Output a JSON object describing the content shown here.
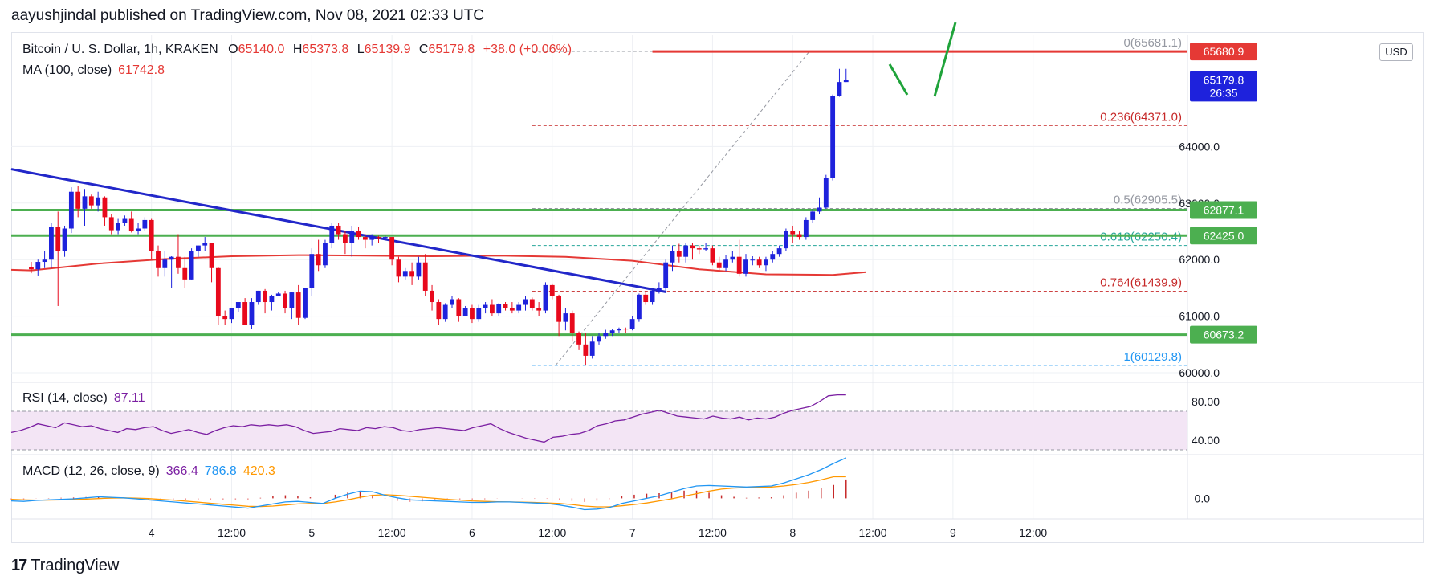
{
  "header": {
    "text": "aayushjindal published on TradingView.com, Nov 08, 2021 02:33 UTC"
  },
  "legend": {
    "title": "Bitcoin / U. S. Dollar, 1h, KRAKEN",
    "open_label": "O",
    "open": "65140.0",
    "high_label": "H",
    "high": "65373.8",
    "low_label": "L",
    "low": "65139.9",
    "close_label": "C",
    "close": "65179.8",
    "change": "+38.0 (+0.06%)",
    "ma_label": "MA (100, close)",
    "ma_value": "61742.8",
    "rsi_label": "RSI (14, close)",
    "rsi_value": "87.11",
    "macd_label": "MACD (12, 26, close, 9)",
    "macd_value1": "366.4",
    "macd_value2": "786.8",
    "macd_value3": "420.3"
  },
  "currency_badge": "USD",
  "logo": {
    "mark": "17",
    "text": "TradingView"
  },
  "colors": {
    "up": "#1e22dc",
    "down": "#e8091c",
    "ma": "#e53935",
    "trendline": "#2227c9",
    "support": "#4caf50",
    "fib_red": "#c62828",
    "fib_green": "#26a69a",
    "fib_blue": "#2196f3",
    "rsi_line": "#7b1fa2",
    "rsi_band": "#f3e5f5",
    "macd_blue": "#2196f3",
    "macd_orange": "#ff9800",
    "hist": "#b71c1c",
    "grid": "#eef0f4",
    "green_draw": "#1fa33a"
  },
  "chart_data": {
    "type": "candlestick",
    "symbol": "Bitcoin / U. S. Dollar",
    "interval": "1h",
    "exchange": "KRAKEN",
    "price_ticks": [
      60000.0,
      61000.0,
      62000.0,
      63000.0,
      64000.0
    ],
    "price_tick_labels": [
      "60000.0",
      "61000.0",
      "62000.0",
      "63000.0",
      "64000.0"
    ],
    "price_range": [
      59830,
      65980
    ],
    "time_ticks": [
      "4",
      "12:00",
      "5",
      "12:00",
      "6",
      "12:00",
      "7",
      "12:00",
      "8",
      "12:00",
      "9",
      "12:00"
    ],
    "time_tick_hours": [
      21,
      33,
      45,
      57,
      69,
      81,
      93,
      105,
      117,
      129,
      141,
      153
    ],
    "time_range_hours": [
      0,
      176
    ],
    "candles": [
      [
        61865,
        61960,
        61760,
        61830
      ],
      [
        61830,
        62000,
        61720,
        61960
      ],
      [
        61960,
        62150,
        61850,
        62000
      ],
      [
        62000,
        62650,
        61850,
        62580
      ],
      [
        62580,
        62850,
        61180,
        62150
      ],
      [
        62150,
        62600,
        62050,
        62550
      ],
      [
        62550,
        63280,
        62470,
        63200
      ],
      [
        63200,
        63300,
        62750,
        62900
      ],
      [
        62900,
        63250,
        62600,
        63120
      ],
      [
        63120,
        63150,
        62900,
        62960
      ],
      [
        62960,
        63200,
        62850,
        63100
      ],
      [
        63100,
        63120,
        62600,
        62750
      ],
      [
        62750,
        62800,
        62450,
        62520
      ],
      [
        62520,
        62720,
        62450,
        62650
      ],
      [
        62650,
        62780,
        62600,
        62720
      ],
      [
        62720,
        62850,
        62480,
        62500
      ],
      [
        62500,
        62650,
        62450,
        62550
      ],
      [
        62550,
        62750,
        62500,
        62700
      ],
      [
        62700,
        62720,
        62000,
        62150
      ],
      [
        62150,
        62250,
        61700,
        61850
      ],
      [
        61850,
        62150,
        61700,
        62000
      ],
      [
        62000,
        62060,
        61500,
        62050
      ],
      [
        62050,
        62450,
        61750,
        61850
      ],
      [
        61850,
        62050,
        61500,
        61650
      ],
      [
        61650,
        62200,
        61650,
        62150
      ],
      [
        62150,
        62250,
        62050,
        62250
      ],
      [
        62250,
        62400,
        62150,
        62300
      ],
      [
        62300,
        62300,
        61600,
        61850
      ],
      [
        61850,
        61860,
        60850,
        61000
      ],
      [
        61000,
        61100,
        60850,
        60950
      ],
      [
        60950,
        61150,
        60880,
        61150
      ],
      [
        61150,
        61250,
        61080,
        61250
      ],
      [
        61250,
        61320,
        60850,
        60850
      ],
      [
        60850,
        61320,
        60780,
        61250
      ],
      [
        61250,
        61450,
        61200,
        61450
      ],
      [
        61450,
        61480,
        61050,
        61250
      ],
      [
        61250,
        61380,
        61100,
        61350
      ],
      [
        61350,
        61420,
        61350,
        61400
      ],
      [
        61400,
        61450,
        61050,
        61150
      ],
      [
        61150,
        61420,
        60950,
        61420
      ],
      [
        61420,
        61550,
        60850,
        60970
      ],
      [
        60970,
        61500,
        60950,
        61500
      ],
      [
        61500,
        62200,
        61350,
        62100
      ],
      [
        62100,
        62350,
        61800,
        61900
      ],
      [
        61900,
        62350,
        61850,
        62300
      ],
      [
        62300,
        62650,
        62200,
        62600
      ],
      [
        62600,
        62650,
        62350,
        62450
      ],
      [
        62450,
        62500,
        62100,
        62300
      ],
      [
        62300,
        62600,
        62050,
        62500
      ],
      [
        62500,
        62580,
        62350,
        62400
      ],
      [
        62400,
        62450,
        62200,
        62350
      ],
      [
        62350,
        62450,
        62250,
        62400
      ],
      [
        62400,
        62420,
        62300,
        62380
      ],
      [
        62380,
        62420,
        62350,
        62400
      ],
      [
        62400,
        62400,
        61900,
        62000
      ],
      [
        62000,
        62050,
        61600,
        61700
      ],
      [
        61700,
        61850,
        61650,
        61800
      ],
      [
        61800,
        61950,
        61550,
        61700
      ],
      [
        61700,
        62050,
        61650,
        61950
      ],
      [
        61950,
        62100,
        61350,
        61450
      ],
      [
        61450,
        61550,
        61100,
        61250
      ],
      [
        61250,
        61300,
        60850,
        60950
      ],
      [
        60950,
        61230,
        60900,
        61200
      ],
      [
        61200,
        61350,
        61150,
        61300
      ],
      [
        61300,
        61320,
        60900,
        61000
      ],
      [
        61000,
        61180,
        61000,
        61150
      ],
      [
        61150,
        61200,
        60880,
        60950
      ],
      [
        60950,
        61200,
        60900,
        61150
      ],
      [
        61150,
        61250,
        61050,
        61200
      ],
      [
        61200,
        61300,
        61000,
        61050
      ],
      [
        61050,
        61230,
        61000,
        61220
      ],
      [
        61220,
        61250,
        61100,
        61150
      ],
      [
        61150,
        61250,
        61050,
        61100
      ],
      [
        61100,
        61250,
        61050,
        61200
      ],
      [
        61200,
        61350,
        61100,
        61300
      ],
      [
        61300,
        61330,
        61100,
        61150
      ],
      [
        61150,
        61250,
        61000,
        61100
      ],
      [
        61100,
        61600,
        61050,
        61550
      ],
      [
        61550,
        61580,
        61300,
        61350
      ],
      [
        61350,
        61380,
        60650,
        60900
      ],
      [
        60900,
        61150,
        60750,
        61050
      ],
      [
        61050,
        61100,
        60550,
        60700
      ],
      [
        60700,
        60730,
        60400,
        60500
      ],
      [
        60500,
        60700,
        60130,
        60300
      ],
      [
        60300,
        60650,
        60250,
        60550
      ],
      [
        60550,
        60700,
        60500,
        60650
      ],
      [
        60650,
        60760,
        60600,
        60700
      ],
      [
        60700,
        60780,
        60650,
        60750
      ],
      [
        60750,
        60800,
        60700,
        60780
      ],
      [
        60780,
        60800,
        60700,
        60770
      ],
      [
        60770,
        61000,
        60750,
        60950
      ],
      [
        60950,
        61400,
        60900,
        61380
      ],
      [
        61380,
        61450,
        61200,
        61250
      ],
      [
        61250,
        61480,
        61200,
        61450
      ],
      [
        61450,
        61600,
        61400,
        61500
      ],
      [
        61500,
        62000,
        61450,
        61950
      ],
      [
        61950,
        62250,
        61800,
        62150
      ],
      [
        62150,
        62280,
        61950,
        62050
      ],
      [
        62050,
        62300,
        61950,
        62250
      ],
      [
        62250,
        62300,
        62000,
        62200
      ],
      [
        62200,
        62250,
        62100,
        62180
      ],
      [
        62180,
        62300,
        62150,
        62200
      ],
      [
        62200,
        62250,
        61900,
        61950
      ],
      [
        61950,
        62050,
        61800,
        61850
      ],
      [
        61850,
        62080,
        61800,
        62000
      ],
      [
        62000,
        62150,
        61950,
        62050
      ],
      [
        62050,
        62350,
        61700,
        61750
      ],
      [
        61750,
        62100,
        61700,
        62000
      ],
      [
        62000,
        62060,
        61900,
        62000
      ],
      [
        62000,
        62050,
        61850,
        61900
      ],
      [
        61900,
        62050,
        61800,
        62000
      ],
      [
        62000,
        62150,
        61950,
        62100
      ],
      [
        62100,
        62250,
        62050,
        62200
      ],
      [
        62200,
        62550,
        62150,
        62500
      ],
      [
        62500,
        62600,
        62300,
        62450
      ],
      [
        62450,
        62500,
        62350,
        62400
      ],
      [
        62400,
        62750,
        62350,
        62700
      ],
      [
        62700,
        62900,
        62650,
        62850
      ],
      [
        62850,
        63100,
        62800,
        62920
      ],
      [
        62920,
        63500,
        62900,
        63450
      ],
      [
        63450,
        64920,
        63400,
        64900
      ],
      [
        64900,
        65373,
        64880,
        65140
      ],
      [
        65140,
        65373,
        65140,
        65180
      ]
    ],
    "ma": {
      "label": "MA (100, close)",
      "value_label": "61742.8",
      "x": [
        0,
        10,
        20,
        30,
        40,
        50,
        60,
        70,
        80,
        90,
        100,
        110,
        120,
        125
      ],
      "y": [
        61810,
        61930,
        62010,
        62060,
        62080,
        62070,
        62060,
        62070,
        62050,
        61980,
        61830,
        61740,
        61730,
        61780
      ]
    },
    "trendline": {
      "x": [
        0,
        95
      ],
      "y": [
        63600,
        61430
      ]
    },
    "horizontal_levels": [
      {
        "price": 65681.1,
        "label": "0(65681.1)",
        "style": "fib-gray"
      },
      {
        "price": 64371.0,
        "label": "0.236(64371.0)",
        "style": "fib-red"
      },
      {
        "price": 62905.5,
        "label": "0.5(62905.5)",
        "style": "fib-gray"
      },
      {
        "price": 62250.4,
        "label": "0.618(62250.4)",
        "style": "fib-green"
      },
      {
        "price": 61439.9,
        "label": "0.764(61439.9)",
        "style": "fib-red"
      },
      {
        "price": 60129.8,
        "label": "1(60129.8)",
        "style": "fib-blue"
      }
    ],
    "support_levels": [
      62877.1,
      62425.0,
      60673.2
    ],
    "resistance_level": 65680,
    "axis_badges": [
      {
        "price": 65680,
        "label": "65680.9",
        "color": "#e53935"
      },
      {
        "price": 65179.8,
        "label": "65179.8",
        "sublabel": "26:35",
        "color": "#1e22dc"
      },
      {
        "price": 62877.1,
        "label": "62877.1",
        "color": "#4caf50"
      },
      {
        "price": 62425.0,
        "label": "62425.0",
        "color": "#4caf50"
      },
      {
        "price": 60673.2,
        "label": "60673.2",
        "color": "#4caf50"
      }
    ],
    "rsi": {
      "label": "RSI (14, close)",
      "value_label": "87.11",
      "ticks": [
        40.0,
        80.0
      ],
      "tick_labels": [
        "40.00",
        "80.00"
      ],
      "band": [
        30,
        70
      ],
      "range": [
        25,
        100
      ],
      "values": [
        48,
        50,
        53,
        57,
        55,
        53,
        58,
        56,
        54,
        55,
        52,
        50,
        48,
        52,
        51,
        53,
        54,
        50,
        47,
        49,
        51,
        48,
        46,
        50,
        53,
        55,
        54,
        56,
        55,
        56,
        55,
        56,
        54,
        50,
        47,
        48,
        49,
        52,
        51,
        50,
        53,
        52,
        54,
        53,
        50,
        49,
        51,
        52,
        53,
        52,
        51,
        50,
        53,
        55,
        57,
        52,
        48,
        45,
        42,
        40,
        38,
        43,
        44,
        46,
        47,
        50,
        55,
        57,
        60,
        61,
        64,
        67,
        69,
        71,
        68,
        65,
        64,
        63,
        62,
        65,
        63,
        62,
        64,
        61,
        63,
        62,
        64,
        68,
        71,
        73,
        75,
        80,
        86,
        87,
        87
      ]
    },
    "macd": {
      "label": "MACD (12, 26, close, 9)",
      "value_label_1": "366.4",
      "value_label_2": "786.8",
      "value_label_3": "420.3",
      "ticks": [
        0.0
      ],
      "tick_labels": [
        "0.0"
      ],
      "range": [
        -400,
        850
      ],
      "macd": [
        -50,
        -60,
        -40,
        -30,
        -20,
        -10,
        10,
        30,
        20,
        10,
        -10,
        -30,
        -50,
        -70,
        -90,
        -110,
        -130,
        -150,
        -170,
        -190,
        -150,
        -110,
        -70,
        -60,
        -80,
        -100,
        0,
        80,
        140,
        130,
        60,
        10,
        -30,
        -40,
        -50,
        -60,
        -70,
        -80,
        -80,
        -70,
        -70,
        -80,
        -90,
        -100,
        -130,
        -170,
        -220,
        -210,
        -180,
        -100,
        -50,
        0,
        50,
        120,
        190,
        240,
        250,
        240,
        230,
        220,
        230,
        240,
        300,
        380,
        460,
        560,
        680,
        787
      ],
      "signal": [
        -20,
        -30,
        -35,
        -35,
        -30,
        -25,
        -15,
        -5,
        5,
        10,
        5,
        -5,
        -20,
        -35,
        -55,
        -75,
        -95,
        -115,
        -135,
        -155,
        -160,
        -150,
        -130,
        -110,
        -100,
        -100,
        -70,
        -30,
        20,
        60,
        70,
        60,
        40,
        20,
        0,
        -20,
        -35,
        -50,
        -60,
        -65,
        -70,
        -75,
        -80,
        -90,
        -100,
        -120,
        -150,
        -165,
        -165,
        -145,
        -120,
        -90,
        -50,
        -10,
        40,
        90,
        140,
        180,
        200,
        210,
        215,
        220,
        240,
        270,
        310,
        360,
        420,
        420
      ]
    }
  }
}
